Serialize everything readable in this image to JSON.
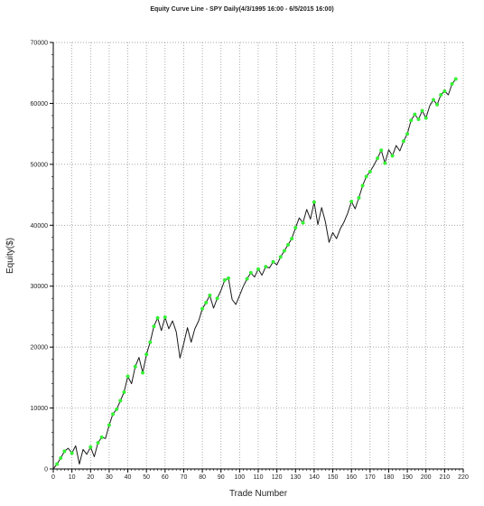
{
  "chart_data": {
    "type": "line",
    "title": "Equity Curve Line - SPY Daily(4/3/1995 16:00 - 6/5/2015 16:00)",
    "xlabel": "Trade Number",
    "ylabel": "Equity($)",
    "xlim": [
      0,
      220
    ],
    "ylim": [
      0,
      70000
    ],
    "x_ticks": [
      0,
      10,
      20,
      30,
      40,
      50,
      60,
      70,
      80,
      90,
      100,
      110,
      120,
      130,
      140,
      150,
      160,
      170,
      180,
      190,
      200,
      210,
      220
    ],
    "x_tick_labels": [
      "0",
      "10",
      "20",
      "30",
      "40",
      "50",
      "60",
      "70",
      "80",
      "90",
      "100",
      "110",
      "120",
      "130",
      "140",
      "150",
      "160",
      "170",
      "180",
      "190",
      "200",
      "210",
      "220"
    ],
    "y_ticks": [
      0,
      10000,
      20000,
      30000,
      40000,
      50000,
      60000,
      70000
    ],
    "y_tick_labels": [
      "0",
      "10000",
      "20000",
      "30000",
      "40000",
      "50000",
      "60000",
      "70000"
    ],
    "grid": true,
    "colors": {
      "line": "#1a1a1a",
      "marker": "#33ff33",
      "grid": "#8a8a8a",
      "axis": "#000000"
    },
    "series": [
      {
        "x": [
          0,
          2,
          4,
          6,
          8,
          10,
          12,
          14,
          16,
          18,
          20,
          22,
          24,
          26,
          28,
          30,
          32,
          34,
          36,
          38,
          40,
          42,
          44,
          46,
          48,
          50,
          52,
          54,
          56,
          58,
          60,
          62,
          64,
          66,
          68,
          70,
          72,
          74,
          76,
          78,
          80,
          82,
          84,
          86,
          88,
          90,
          92,
          94,
          96,
          98,
          100,
          102,
          104,
          106,
          108,
          110,
          112,
          114,
          116,
          118,
          120,
          122,
          124,
          126,
          128,
          130,
          132,
          134,
          136,
          138,
          140,
          142,
          144,
          146,
          148,
          150,
          152,
          154,
          156,
          158,
          160,
          162,
          164,
          166,
          168,
          170,
          172,
          174,
          176,
          178,
          180,
          182,
          184,
          186,
          188,
          190,
          192,
          194,
          196,
          198,
          200,
          202,
          204,
          206,
          208,
          210,
          212,
          214,
          216
        ],
        "y": [
          0,
          800,
          1800,
          2900,
          3400,
          2600,
          3800,
          800,
          3200,
          2400,
          3600,
          2000,
          4300,
          5200,
          5000,
          7200,
          9000,
          9800,
          11200,
          12600,
          15200,
          14000,
          16800,
          18300,
          15800,
          18800,
          20800,
          23400,
          24800,
          22700,
          24900,
          23000,
          24300,
          22500,
          18200,
          20600,
          23200,
          20800,
          23000,
          24300,
          26300,
          27300,
          28500,
          26400,
          28000,
          29300,
          31000,
          31300,
          27800,
          27000,
          28500,
          30000,
          31200,
          32200,
          31500,
          32800,
          31800,
          33200,
          33000,
          34000,
          33500,
          34800,
          35800,
          36800,
          37800,
          39600,
          41200,
          40400,
          42600,
          41000,
          43800,
          40100,
          42900,
          40600,
          37200,
          38800,
          37800,
          39400,
          40500,
          42000,
          43900,
          42700,
          44500,
          46500,
          48000,
          48800,
          49800,
          51000,
          52300,
          50200,
          52400,
          51400,
          53100,
          52200,
          53800,
          55000,
          57200,
          58200,
          57400,
          58800,
          57600,
          59600,
          60600,
          59800,
          61400,
          62000,
          61400,
          63200,
          64000
        ],
        "marker_x": [
          2,
          4,
          6,
          10,
          20,
          24,
          26,
          30,
          32,
          34,
          36,
          38,
          40,
          44,
          48,
          50,
          52,
          54,
          56,
          60,
          80,
          82,
          84,
          88,
          92,
          94,
          104,
          106,
          110,
          114,
          118,
          122,
          124,
          126,
          128,
          130,
          134,
          140,
          160,
          164,
          166,
          168,
          170,
          174,
          176,
          178,
          182,
          188,
          190,
          192,
          194,
          196,
          198,
          200,
          204,
          206,
          208,
          210,
          214,
          216
        ]
      }
    ]
  }
}
